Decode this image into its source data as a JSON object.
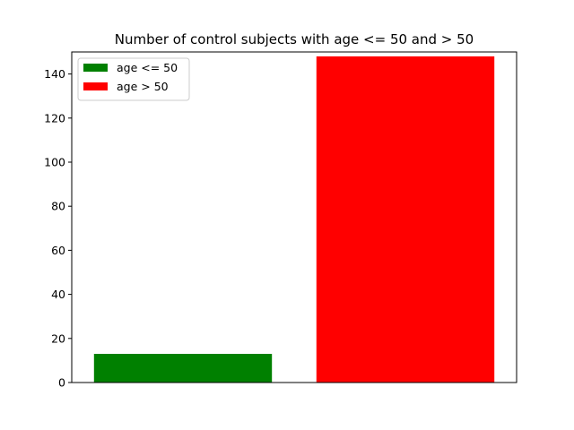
{
  "chart_data": {
    "type": "bar",
    "title": "Number of control subjects with age <= 50 and > 50",
    "xlabel": "",
    "ylabel": "",
    "ylim": [
      0,
      150
    ],
    "yticks": [
      0,
      20,
      40,
      60,
      80,
      100,
      120,
      140
    ],
    "yticks_text": [
      "0",
      "20",
      "40",
      "60",
      "80",
      "100",
      "120",
      "140"
    ],
    "grid": false,
    "legend_position": "upper-left",
    "series": [
      {
        "name": "age <= 50",
        "value": 13,
        "color": "#008000"
      },
      {
        "name": "age > 50",
        "value": 148,
        "color": "#ff0000"
      }
    ]
  }
}
